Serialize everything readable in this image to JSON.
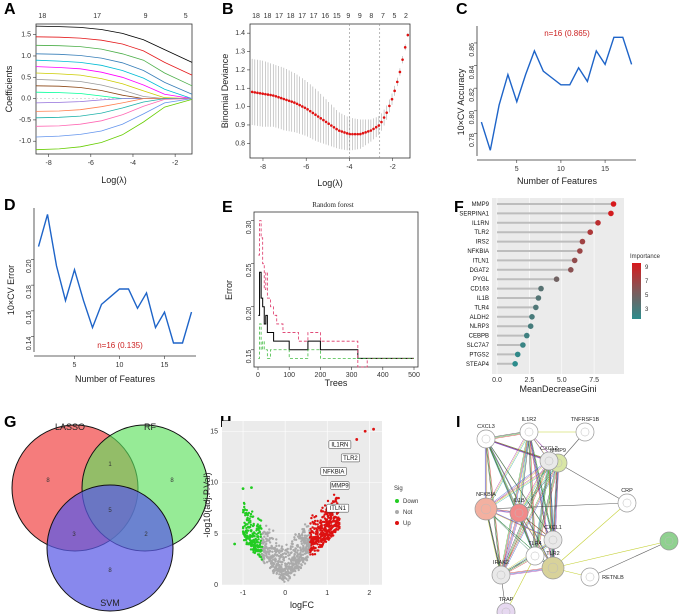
{
  "panels": {
    "A": {
      "label": "A",
      "xlabel": "Log(λ)",
      "ylabel": "Coefficients",
      "xticks": [
        -8,
        -6,
        -4,
        -2
      ],
      "yticks": [
        -1.0,
        -0.5,
        0.0,
        0.5,
        1.0,
        1.5
      ],
      "top_ticks": [
        {
          "x": -8.3,
          "label": "18"
        },
        {
          "x": -5.7,
          "label": "17"
        },
        {
          "x": -3.4,
          "label": "9"
        },
        {
          "x": -1.5,
          "label": "5"
        }
      ],
      "colors": [
        "#000000",
        "#e41a1c",
        "#4daf4a",
        "#377eb8",
        "#00bcd4",
        "#ff00ff",
        "#cccc00",
        "#999999",
        "#8b4513",
        "#00ff99",
        "#9370db",
        "#ff7f50",
        "#20b2aa",
        "#ff69b4",
        "#6495ed",
        "#66cd00"
      ]
    },
    "B": {
      "label": "B",
      "xlabel": "Log(λ)",
      "ylabel": "Binomial Deviance",
      "xticks": [
        -8,
        -6,
        -4,
        -2
      ],
      "yticks": [
        0.8,
        0.9,
        1.0,
        1.1,
        1.2,
        1.3,
        1.4
      ],
      "top_ticks": [
        "18",
        "18",
        "17",
        "18",
        "17",
        "17",
        "16",
        "15",
        "9",
        "9",
        "8",
        "7",
        "5",
        "2"
      ],
      "vlines": [
        -4.0,
        -2.6
      ]
    },
    "C": {
      "label": "C",
      "xlabel": "Number of Features",
      "ylabel": "10×CV Accuracy",
      "annotation": "n=16 (0.865)"
    },
    "D": {
      "label": "D",
      "xlabel": "Number of Features",
      "ylabel": "10×CV Error",
      "annotation": "n=16 (0.135)"
    },
    "E": {
      "label": "E",
      "title": "Random forest",
      "xlabel": "Trees",
      "ylabel": "Error"
    },
    "F": {
      "label": "F",
      "xlabel": "MeanDecreaseGini",
      "legend_title": "Importance",
      "legend_ticks": [
        "9",
        "7",
        "5",
        "3"
      ]
    },
    "G": {
      "label": "G",
      "sets": [
        "LASSO",
        "RF",
        "SVM"
      ],
      "regions": {
        "lasso_only": "8",
        "rf_only": "8",
        "svm_only": "8",
        "lasso_rf": "1",
        "lasso_svm": "3",
        "rf_svm": "2",
        "all": "5"
      }
    },
    "H": {
      "label": "H",
      "xlabel": "logFC",
      "ylabel": "-log10(adj.P.Val)",
      "legend_title": "Sig",
      "legend": [
        {
          "label": "Down",
          "color": "#22cc22"
        },
        {
          "label": "Not",
          "color": "#aaaaaa"
        },
        {
          "label": "Up",
          "color": "#dd1111"
        }
      ],
      "genes": [
        "IL1RN",
        "TLR2",
        "NFKBIA",
        "MMP9",
        "ITLN1"
      ]
    },
    "I": {
      "label": "I",
      "nodes": [
        "CXCL3",
        "IL1R2",
        "TNFRSF1B",
        "MMP9",
        "CXCL2",
        "CRP",
        "NFKBIA",
        "IL1B",
        "CXCL1",
        "TLR4",
        "RETNLB",
        "ITLN1",
        "IRAK2",
        "TLR2",
        "TRAP"
      ]
    }
  },
  "chart_data": [
    {
      "panel": "A",
      "type": "line",
      "title": "",
      "xlabel": "Log(λ)",
      "ylabel": "Coefficients",
      "xlim": [
        -8.6,
        -1.2
      ],
      "ylim": [
        -1.3,
        1.75
      ],
      "x": [
        -8.6,
        -7.5,
        -6.5,
        -5.5,
        -4.5,
        -3.5,
        -2.5,
        -1.2
      ],
      "series": [
        {
          "values": [
            1.7,
            1.69,
            1.67,
            1.62,
            1.53,
            1.38,
            1.15,
            0.85
          ]
        },
        {
          "values": [
            1.45,
            1.44,
            1.42,
            1.37,
            1.28,
            1.12,
            0.85,
            0.55
          ]
        },
        {
          "values": [
            1.25,
            1.24,
            1.22,
            1.16,
            1.05,
            0.9,
            0.6,
            0.3
          ]
        },
        {
          "values": [
            1.05,
            1.04,
            1.01,
            0.95,
            0.84,
            0.66,
            0.38,
            0.1
          ]
        },
        {
          "values": [
            0.9,
            0.88,
            0.85,
            0.78,
            0.66,
            0.48,
            0.22,
            0.0
          ]
        },
        {
          "values": [
            0.75,
            0.73,
            0.7,
            0.62,
            0.5,
            0.32,
            0.1,
            0.0
          ]
        },
        {
          "values": [
            0.6,
            0.58,
            0.55,
            0.47,
            0.35,
            0.18,
            0.02,
            0.0
          ]
        },
        {
          "values": [
            0.45,
            0.43,
            0.4,
            0.32,
            0.2,
            0.05,
            0.0,
            0.0
          ]
        },
        {
          "values": [
            0.3,
            0.29,
            0.26,
            0.19,
            0.08,
            0.0,
            0.0,
            0.0
          ]
        },
        {
          "values": [
            0.15,
            0.14,
            0.12,
            0.06,
            0.0,
            0.0,
            0.0,
            0.0
          ]
        },
        {
          "values": [
            -0.1,
            -0.09,
            -0.07,
            -0.03,
            0.0,
            0.0,
            0.0,
            0.0
          ]
        },
        {
          "values": [
            -0.3,
            -0.29,
            -0.26,
            -0.19,
            -0.1,
            0.0,
            0.0,
            0.0
          ]
        },
        {
          "values": [
            -0.45,
            -0.44,
            -0.41,
            -0.34,
            -0.22,
            -0.08,
            0.0,
            0.0
          ]
        },
        {
          "values": [
            -0.65,
            -0.64,
            -0.6,
            -0.52,
            -0.38,
            -0.18,
            -0.02,
            0.0
          ]
        },
        {
          "values": [
            -0.9,
            -0.88,
            -0.84,
            -0.76,
            -0.6,
            -0.36,
            -0.1,
            0.0
          ]
        },
        {
          "values": [
            -1.2,
            -1.18,
            -1.13,
            -1.03,
            -0.85,
            -0.55,
            -0.2,
            -0.02
          ]
        }
      ]
    },
    {
      "panel": "B",
      "type": "line",
      "title": "",
      "xlabel": "Log(λ)",
      "ylabel": "Binomial Deviance",
      "xlim": [
        -8.6,
        -1.2
      ],
      "ylim": [
        0.72,
        1.45
      ],
      "x": [
        -8.5,
        -8.0,
        -7.5,
        -7.0,
        -6.5,
        -6.0,
        -5.5,
        -5.0,
        -4.5,
        -4.0,
        -3.5,
        -3.0,
        -2.6,
        -2.3,
        -2.0,
        -1.7,
        -1.5,
        -1.3
      ],
      "values": [
        1.08,
        1.07,
        1.06,
        1.04,
        1.02,
        0.99,
        0.95,
        0.91,
        0.87,
        0.85,
        0.85,
        0.87,
        0.9,
        0.96,
        1.05,
        1.17,
        1.28,
        1.39
      ],
      "error_half_width": [
        0.18,
        0.18,
        0.17,
        0.17,
        0.16,
        0.15,
        0.14,
        0.12,
        0.1,
        0.09,
        0.08,
        0.06,
        0.05,
        0.04,
        0.03,
        0.02,
        0.02,
        0.01
      ]
    },
    {
      "panel": "C",
      "type": "line",
      "title": "",
      "xlabel": "Number of Features",
      "ylabel": "10×CV Accuracy",
      "xlim": [
        0.5,
        18.5
      ],
      "ylim": [
        0.76,
        0.875
      ],
      "xticks": [
        5,
        10,
        15
      ],
      "yticks": [
        0.78,
        0.8,
        0.82,
        0.84,
        0.86
      ],
      "x": [
        1,
        2,
        3,
        4,
        5,
        6,
        7,
        8,
        9,
        10,
        11,
        12,
        13,
        14,
        15,
        16,
        17,
        18
      ],
      "values": [
        0.79,
        0.765,
        0.805,
        0.832,
        0.808,
        0.832,
        0.853,
        0.835,
        0.829,
        0.823,
        0.823,
        0.838,
        0.826,
        0.853,
        0.841,
        0.865,
        0.865,
        0.841
      ]
    },
    {
      "panel": "D",
      "type": "line",
      "title": "",
      "xlabel": "Number of Features",
      "ylabel": "10×CV Error",
      "xlim": [
        0.5,
        18.5
      ],
      "ylim": [
        0.128,
        0.24
      ],
      "xticks": [
        5,
        10,
        15
      ],
      "yticks": [
        0.14,
        0.16,
        0.18,
        0.2
      ],
      "x": [
        1,
        2,
        3,
        4,
        5,
        6,
        7,
        8,
        9,
        10,
        11,
        12,
        13,
        14,
        15,
        16,
        17,
        18
      ],
      "values": [
        0.21,
        0.235,
        0.195,
        0.168,
        0.192,
        0.168,
        0.147,
        0.165,
        0.171,
        0.177,
        0.177,
        0.162,
        0.174,
        0.147,
        0.159,
        0.135,
        0.135,
        0.159
      ]
    },
    {
      "panel": "E",
      "type": "line",
      "title": "Random forest",
      "xlabel": "Trees",
      "ylabel": "Error",
      "xlim": [
        0,
        500
      ],
      "ylim": [
        0.13,
        0.31
      ],
      "xticks": [
        0,
        100,
        200,
        300,
        400,
        500
      ],
      "yticks": [
        0.15,
        0.2,
        0.25,
        0.3
      ],
      "series": [
        {
          "name": "",
          "color": "#000000",
          "x": [
            1,
            5,
            10,
            15,
            20,
            25,
            30,
            40,
            50,
            60,
            80,
            100,
            130,
            160,
            200,
            250,
            300,
            320,
            350,
            400,
            450,
            500
          ],
          "values": [
            0.19,
            0.24,
            0.21,
            0.2,
            0.18,
            0.19,
            0.17,
            0.17,
            0.16,
            0.16,
            0.16,
            0.15,
            0.15,
            0.16,
            0.15,
            0.15,
            0.15,
            0.14,
            0.14,
            0.14,
            0.14,
            0.14
          ]
        },
        {
          "name": "",
          "color": "#dd3366",
          "x": [
            1,
            5,
            10,
            15,
            20,
            25,
            30,
            40,
            50,
            60,
            80,
            100,
            130,
            160,
            200,
            250,
            300,
            320,
            350,
            400,
            450,
            500
          ],
          "values": [
            0.26,
            0.3,
            0.28,
            0.25,
            0.22,
            0.24,
            0.21,
            0.2,
            0.19,
            0.18,
            0.17,
            0.17,
            0.16,
            0.17,
            0.16,
            0.16,
            0.16,
            0.13,
            0.14,
            0.14,
            0.14,
            0.14
          ]
        },
        {
          "name": "",
          "color": "#44bb44",
          "x": [
            1,
            5,
            10,
            15,
            20,
            25,
            30,
            40,
            50,
            60,
            80,
            100,
            130,
            160,
            200,
            250,
            300,
            320,
            350,
            400,
            450,
            500
          ],
          "values": [
            0.14,
            0.18,
            0.15,
            0.16,
            0.15,
            0.15,
            0.14,
            0.15,
            0.15,
            0.15,
            0.15,
            0.14,
            0.14,
            0.15,
            0.14,
            0.14,
            0.14,
            0.14,
            0.14,
            0.14,
            0.14,
            0.14
          ]
        }
      ]
    },
    {
      "panel": "F",
      "type": "bar",
      "title": "",
      "xlabel": "MeanDecreaseGini",
      "xlim": [
        0,
        9.5
      ],
      "xticks": [
        0.0,
        2.5,
        5.0,
        7.5
      ],
      "categories": [
        "MMP9",
        "SERPINA1",
        "IL1RN",
        "TLR2",
        "IRS2",
        "NFKBIA",
        "ITLN1",
        "DGAT2",
        "PYGL",
        "CD163",
        "IL1B",
        "TLR4",
        "ALDH2",
        "NLRP3",
        "CEBPB",
        "SLC7A7",
        "PTGS2",
        "STEAP4"
      ],
      "values": [
        9.0,
        8.8,
        7.8,
        7.2,
        6.6,
        6.4,
        6.0,
        5.7,
        4.6,
        3.4,
        3.2,
        3.0,
        2.7,
        2.6,
        2.3,
        2.0,
        1.6,
        1.4
      ]
    },
    {
      "panel": "H",
      "type": "scatter",
      "title": "",
      "xlabel": "logFC",
      "ylabel": "-log10(adj.P.Val)",
      "xlim": [
        -1.5,
        2.3
      ],
      "ylim": [
        0,
        16
      ],
      "xticks": [
        -1,
        0,
        1,
        2
      ],
      "yticks": [
        0,
        5,
        10,
        15
      ],
      "labeled_points": [
        {
          "gene": "IL1RN",
          "x": 1.3,
          "y": 13.6
        },
        {
          "gene": "TLR2",
          "x": 1.55,
          "y": 12.3
        },
        {
          "gene": "NFKBIA",
          "x": 1.15,
          "y": 11.0
        },
        {
          "gene": "MMP9",
          "x": 1.3,
          "y": 9.6
        },
        {
          "gene": "ITLN1",
          "x": 1.25,
          "y": 7.4
        }
      ]
    }
  ]
}
